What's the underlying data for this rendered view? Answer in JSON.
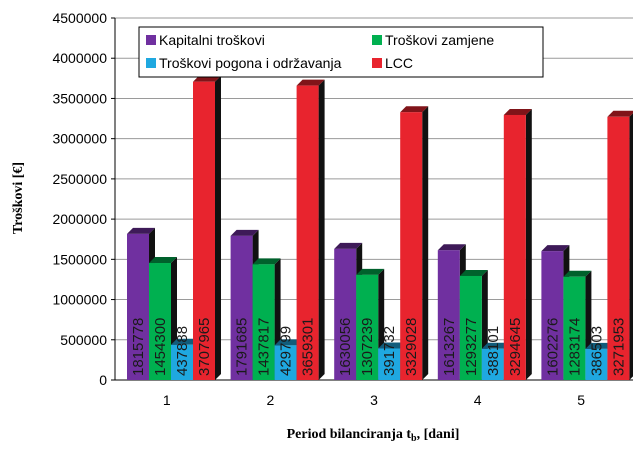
{
  "chart_data": {
    "type": "bar",
    "categories": [
      "1",
      "2",
      "3",
      "4",
      "5"
    ],
    "series": [
      {
        "name": "Kapitalni troškovi",
        "color": "#7030A0",
        "values": [
          1815778,
          1791685,
          1630056,
          1613267,
          1602276
        ]
      },
      {
        "name": "Troškovi zamjene",
        "color": "#00B050",
        "values": [
          1454300,
          1437817,
          1307239,
          1293277,
          1283174
        ]
      },
      {
        "name": "Troškovi pogona i održavanja",
        "color": "#1FA8E0",
        "values": [
          437888,
          429799,
          391732,
          388101,
          386503
        ]
      },
      {
        "name": "LCC",
        "color": "#E8242E",
        "values": [
          3707965,
          3659301,
          3329028,
          3294645,
          3271953
        ]
      }
    ],
    "data_labels": [
      [
        "1815778",
        "1454300",
        "437888",
        "3707965"
      ],
      [
        "1791685",
        "1437817",
        "429799",
        "3659301"
      ],
      [
        "1630056",
        "1307239",
        "391732",
        "3329028"
      ],
      [
        "1613267",
        "1293277",
        "388101",
        "3294645"
      ],
      [
        "1602276",
        "1283174",
        "386503",
        "3271953"
      ]
    ],
    "y_ticks": [
      "0",
      "500000",
      "1000000",
      "1500000",
      "2000000",
      "2500000",
      "3000000",
      "3500000",
      "4000000",
      "4500000"
    ],
    "ylim": [
      0,
      4500000
    ],
    "ylabel": "Troškovi [€]",
    "xlabel": {
      "main": "Period bilanciranja t",
      "sub": "b",
      "tail": ", [dani]"
    },
    "grid": true,
    "legend_position": "top"
  }
}
